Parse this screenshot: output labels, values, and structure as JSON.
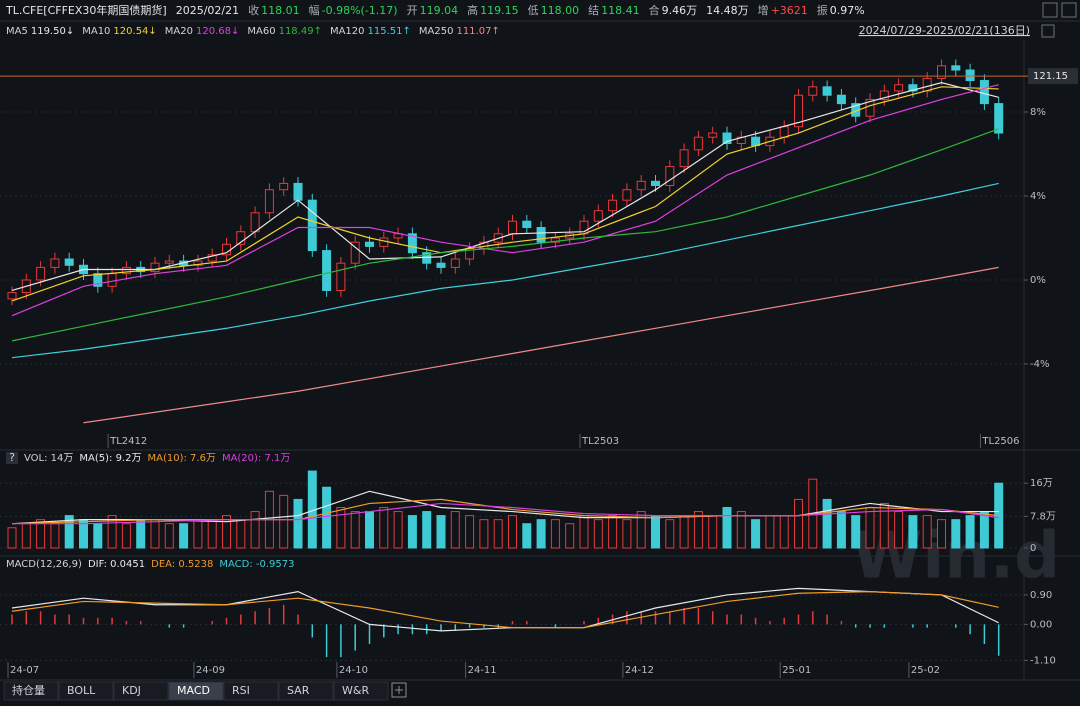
{
  "header": {
    "items": [
      {
        "text": "TL.CFE[CFFEX30年期国债期货]",
        "color": "#e6e6e6"
      },
      {
        "text": "2025/02/21",
        "color": "#e6e6e6"
      },
      {
        "text": "收",
        "color": "#aab0ba"
      },
      {
        "text": "118.01",
        "color": "#2fd35a"
      },
      {
        "text": "幅",
        "color": "#aab0ba"
      },
      {
        "text": "-0.98%(-1.17)",
        "color": "#2fd35a"
      },
      {
        "text": "开",
        "color": "#aab0ba"
      },
      {
        "text": "119.04",
        "color": "#2fd35a"
      },
      {
        "text": "高",
        "color": "#aab0ba"
      },
      {
        "text": "119.15",
        "color": "#2fd35a"
      },
      {
        "text": "低",
        "color": "#aab0ba"
      },
      {
        "text": "118.00",
        "color": "#2fd35a"
      },
      {
        "text": "结",
        "color": "#aab0ba"
      },
      {
        "text": "118.41",
        "color": "#2fd35a"
      },
      {
        "text": "合",
        "color": "#aab0ba"
      },
      {
        "text": "9.46万",
        "color": "#e6e6e6"
      },
      {
        "text": "14.48万",
        "color": "#e6e6e6"
      },
      {
        "text": "增",
        "color": "#aab0ba"
      },
      {
        "text": "+3621",
        "color": "#ff4a4a"
      },
      {
        "text": "振",
        "color": "#aab0ba"
      },
      {
        "text": "0.97%",
        "color": "#e6e6e6"
      }
    ],
    "range": "2024/07/29-2025/02/21(136日)"
  },
  "help_icon": "?",
  "watermark": "Win.d",
  "tabs": {
    "items": [
      "持仓量",
      "BOLL",
      "KDJ",
      "MACD",
      "RSI",
      "SAR",
      "W&R"
    ],
    "active": "MACD"
  },
  "chart_data": [
    {
      "type": "candlestick",
      "open": [
        -0.9,
        -0.6,
        0.0,
        0.6,
        1.0,
        0.7,
        0.3,
        -0.3,
        0.3,
        0.6,
        0.4,
        0.8,
        0.9,
        0.7,
        0.9,
        1.2,
        1.7,
        2.3,
        3.2,
        4.3,
        4.6,
        3.8,
        1.4,
        -0.5,
        0.8,
        1.8,
        1.6,
        2.0,
        2.2,
        1.3,
        0.8,
        0.6,
        1.0,
        1.5,
        1.8,
        2.2,
        2.8,
        2.5,
        1.8,
        2.0,
        2.2,
        2.8,
        3.3,
        3.8,
        4.3,
        4.7,
        4.5,
        5.4,
        6.2,
        6.8,
        7.0,
        6.5,
        6.8,
        6.4,
        6.8,
        7.3,
        8.8,
        9.2,
        8.8,
        8.4,
        7.8,
        8.6,
        9.0,
        9.3,
        9.0,
        9.6,
        10.2,
        10.0,
        9.5,
        8.4
      ],
      "high": [
        -0.3,
        0.3,
        0.9,
        1.3,
        1.3,
        1.0,
        0.6,
        0.6,
        0.9,
        0.9,
        1.1,
        1.2,
        1.2,
        1.2,
        1.5,
        2.0,
        2.6,
        3.5,
        4.6,
        4.9,
        4.9,
        4.1,
        1.7,
        1.1,
        2.1,
        2.1,
        2.3,
        2.5,
        2.5,
        1.6,
        1.1,
        1.3,
        1.8,
        2.1,
        2.5,
        3.1,
        3.1,
        2.8,
        2.3,
        2.5,
        3.1,
        3.6,
        4.1,
        4.6,
        5.0,
        5.0,
        5.7,
        6.5,
        7.1,
        7.3,
        7.3,
        7.1,
        7.1,
        7.1,
        7.6,
        9.1,
        9.5,
        9.5,
        9.1,
        8.7,
        8.9,
        9.3,
        9.6,
        9.6,
        9.9,
        10.5,
        10.5,
        10.3,
        9.8,
        8.7
      ],
      "low": [
        -1.2,
        -0.9,
        -0.3,
        0.3,
        0.4,
        0.0,
        -0.6,
        -0.6,
        0.0,
        0.1,
        0.1,
        0.5,
        0.4,
        0.4,
        0.6,
        0.9,
        1.4,
        2.0,
        2.9,
        4.0,
        3.5,
        1.1,
        -0.8,
        -0.8,
        0.5,
        1.3,
        1.3,
        1.7,
        1.0,
        0.5,
        0.3,
        0.3,
        0.7,
        1.2,
        1.5,
        1.9,
        2.2,
        1.5,
        1.5,
        1.7,
        1.9,
        2.5,
        3.0,
        3.5,
        4.0,
        4.2,
        4.2,
        5.1,
        5.9,
        6.5,
        6.2,
        6.2,
        6.1,
        6.1,
        6.5,
        7.0,
        8.5,
        8.5,
        8.1,
        7.5,
        7.5,
        8.3,
        8.7,
        8.7,
        8.7,
        9.3,
        9.7,
        9.2,
        8.1,
        6.7
      ],
      "close": [
        -0.6,
        0.0,
        0.6,
        1.0,
        0.7,
        0.3,
        -0.3,
        0.3,
        0.6,
        0.4,
        0.8,
        0.9,
        0.7,
        0.9,
        1.2,
        1.7,
        2.3,
        3.2,
        4.3,
        4.6,
        3.8,
        1.4,
        -0.5,
        0.8,
        1.8,
        1.6,
        2.0,
        2.2,
        1.3,
        0.8,
        0.6,
        1.0,
        1.5,
        1.8,
        2.2,
        2.8,
        2.5,
        1.8,
        2.0,
        2.2,
        2.8,
        3.3,
        3.8,
        4.3,
        4.7,
        4.5,
        5.4,
        6.2,
        6.8,
        7.0,
        6.5,
        6.8,
        6.4,
        6.8,
        7.3,
        8.8,
        9.2,
        8.8,
        8.4,
        7.8,
        8.6,
        9.0,
        9.3,
        9.0,
        9.6,
        10.2,
        10.0,
        9.5,
        8.4,
        7.0
      ],
      "up_color": "#e8393a",
      "down_color": "#3fcbd5",
      "ylim": [
        -7.24,
        11.43
      ],
      "yticks": [
        {
          "value": -4,
          "label": "-4%"
        },
        {
          "value": 0,
          "label": "0%"
        },
        {
          "value": 4,
          "label": "4%"
        },
        {
          "value": 8,
          "label": "8%"
        }
      ],
      "price_line": {
        "value": 9.71,
        "label": "121.15",
        "color": "#c8642a"
      },
      "contracts": [
        {
          "index": 7,
          "label": "TL2412"
        },
        {
          "index": 40,
          "label": "TL2503"
        },
        {
          "index": 68,
          "label": "TL2506"
        }
      ],
      "series": [
        {
          "name": "MA5",
          "last": "119.50↓",
          "color": "#e8e8e8",
          "x": [
            0,
            5,
            10,
            15,
            20,
            25,
            30,
            35,
            40,
            45,
            50,
            55,
            60,
            65,
            69
          ],
          "values": [
            -0.5,
            0.5,
            0.5,
            1.3,
            3.8,
            1.0,
            1.1,
            2.2,
            2.3,
            4.3,
            6.6,
            7.5,
            8.5,
            9.4,
            8.7
          ]
        },
        {
          "name": "MA10",
          "last": "120.54↓",
          "color": "#f2d22b",
          "x": [
            0,
            5,
            10,
            15,
            20,
            25,
            30,
            35,
            40,
            45,
            50,
            55,
            60,
            65,
            69
          ],
          "values": [
            -1.0,
            0.2,
            0.5,
            0.9,
            3.0,
            2.0,
            1.3,
            1.8,
            2.2,
            3.5,
            6.0,
            7.0,
            8.3,
            9.2,
            9.1
          ]
        },
        {
          "name": "MA20",
          "last": "120.68↓",
          "color": "#e040e6",
          "x": [
            0,
            5,
            10,
            15,
            20,
            25,
            30,
            35,
            40,
            45,
            50,
            55,
            60,
            65,
            69
          ],
          "values": [
            -1.7,
            -0.3,
            0.3,
            0.7,
            2.5,
            2.5,
            1.8,
            1.3,
            1.8,
            2.8,
            5.0,
            6.3,
            7.6,
            8.6,
            9.3
          ]
        },
        {
          "name": "MA60",
          "last": "118.49↑",
          "color": "#2eb83a",
          "x": [
            0,
            5,
            10,
            15,
            20,
            25,
            30,
            35,
            40,
            45,
            50,
            55,
            60,
            65,
            69
          ],
          "values": [
            -2.9,
            -2.2,
            -1.5,
            -0.8,
            0.0,
            0.8,
            1.3,
            1.6,
            2.0,
            2.3,
            3.0,
            4.0,
            5.0,
            6.2,
            7.2
          ]
        },
        {
          "name": "MA120",
          "last": "115.51↑",
          "color": "#3fd0dc",
          "x": [
            0,
            5,
            10,
            15,
            20,
            25,
            30,
            35,
            40,
            45,
            50,
            55,
            60,
            65,
            69
          ],
          "values": [
            -3.7,
            -3.3,
            -2.8,
            -2.3,
            -1.7,
            -1.0,
            -0.4,
            0.0,
            0.6,
            1.2,
            1.9,
            2.6,
            3.3,
            4.0,
            4.6
          ]
        },
        {
          "name": "MA250",
          "last": "111.07↑",
          "color": "#f08a8a",
          "x": [
            0,
            5,
            10,
            15,
            20,
            25,
            30,
            35,
            40,
            45,
            50,
            55,
            60,
            65,
            69
          ],
          "values": [
            null,
            -6.8,
            -6.3,
            -5.8,
            -5.3,
            -4.7,
            -4.1,
            -3.5,
            -2.9,
            -2.3,
            -1.7,
            -1.1,
            -0.5,
            0.1,
            0.6
          ]
        }
      ]
    },
    {
      "type": "volume",
      "title": "VOL: 14万",
      "values": [
        5,
        6,
        7,
        6,
        8,
        7,
        6,
        8,
        6,
        7,
        7,
        6,
        6,
        7,
        7,
        8,
        7,
        9,
        14,
        13,
        12,
        19,
        15,
        10,
        9,
        9,
        10,
        9,
        8,
        9,
        8,
        9,
        8,
        7,
        7,
        8,
        6,
        7,
        7,
        6,
        8,
        7,
        8,
        7,
        9,
        8,
        7,
        8,
        9,
        8,
        10,
        9,
        7,
        8,
        8,
        12,
        17,
        12,
        9,
        8,
        10,
        11,
        9,
        8,
        8,
        7,
        7,
        8,
        9,
        16
      ],
      "ylim": [
        0,
        20.5
      ],
      "yticks": [
        0,
        {
          "value": 7.8,
          "label": "7.8万"
        },
        {
          "value": 16,
          "label": "16万"
        }
      ],
      "series": [
        {
          "name": "MA(5): 9.2万",
          "color": "#e8e8e8",
          "x": [
            0,
            5,
            10,
            15,
            20,
            25,
            30,
            35,
            40,
            45,
            50,
            55,
            60,
            65,
            69
          ],
          "values": [
            6,
            7,
            7,
            6.5,
            8,
            14,
            10,
            9,
            7.5,
            7.5,
            8,
            8,
            11,
            9,
            9
          ]
        },
        {
          "name": "MA(10): 7.6万",
          "color": "#f09a2a",
          "x": [
            0,
            5,
            10,
            15,
            20,
            25,
            30,
            35,
            40,
            45,
            50,
            55,
            60,
            65,
            69
          ],
          "values": [
            6,
            6.5,
            7,
            7,
            7,
            11,
            12,
            9.5,
            8,
            7.5,
            8,
            8,
            10,
            9.5,
            8
          ]
        },
        {
          "name": "MA(20): 7.1万",
          "color": "#d640e0",
          "x": [
            0,
            5,
            10,
            15,
            20,
            25,
            30,
            35,
            40,
            45,
            50,
            55,
            60,
            65,
            69
          ],
          "values": [
            6,
            6,
            6.5,
            7,
            7,
            9,
            11,
            10,
            8.5,
            8,
            8,
            8,
            9,
            9.5,
            7.5
          ]
        }
      ]
    },
    {
      "type": "macd",
      "title": "MACD(12,26,9)",
      "name": "MACD: -0.9573",
      "up_color": "#e8393a",
      "down_color": "#3fcbd5",
      "values": [
        0.3,
        0.4,
        0.4,
        0.3,
        0.3,
        0.2,
        0.2,
        0.2,
        0.1,
        0.1,
        0.0,
        -0.1,
        -0.1,
        0.0,
        0.1,
        0.2,
        0.3,
        0.4,
        0.5,
        0.6,
        0.3,
        -0.4,
        -1.0,
        -1.0,
        -0.8,
        -0.6,
        -0.4,
        -0.3,
        -0.3,
        -0.3,
        -0.2,
        -0.2,
        -0.1,
        -0.1,
        -0.1,
        0.1,
        0.1,
        0.0,
        -0.1,
        0.0,
        0.1,
        0.2,
        0.3,
        0.4,
        0.4,
        0.4,
        0.4,
        0.5,
        0.5,
        0.4,
        0.3,
        0.3,
        0.2,
        0.1,
        0.2,
        0.3,
        0.4,
        0.3,
        0.1,
        -0.1,
        -0.1,
        -0.1,
        0.0,
        -0.1,
        -0.1,
        0.0,
        -0.1,
        -0.3,
        -0.6,
        -0.96
      ],
      "ylim": [
        -1.15,
        1.6
      ],
      "yticks": [
        {
          "value": 0.9,
          "label": "0.90"
        },
        {
          "value": 0,
          "label": "0.00"
        },
        {
          "value": -1.1,
          "label": "-1.10"
        }
      ],
      "series": [
        {
          "name": "DIF: 0.0451",
          "color": "#e8e8e8",
          "x": [
            0,
            5,
            10,
            15,
            20,
            25,
            30,
            35,
            40,
            45,
            50,
            55,
            60,
            65,
            69
          ],
          "values": [
            0.5,
            0.8,
            0.6,
            0.6,
            1.0,
            0.0,
            -0.2,
            -0.1,
            -0.1,
            0.5,
            0.9,
            1.1,
            1.0,
            0.9,
            0.05
          ]
        },
        {
          "name": "DEA: 0.5238",
          "color": "#f09a2a",
          "x": [
            0,
            5,
            10,
            15,
            20,
            25,
            30,
            35,
            40,
            45,
            50,
            55,
            60,
            65,
            69
          ],
          "values": [
            0.4,
            0.7,
            0.65,
            0.6,
            0.8,
            0.5,
            0.1,
            -0.1,
            -0.1,
            0.3,
            0.7,
            0.95,
            1.0,
            0.9,
            0.52
          ]
        }
      ],
      "date_labels": [
        {
          "index": 0,
          "label": "24-07"
        },
        {
          "index": 13,
          "label": "24-09"
        },
        {
          "index": 23,
          "label": "24-10"
        },
        {
          "index": 32,
          "label": "24-11"
        },
        {
          "index": 43,
          "label": "24-12"
        },
        {
          "index": 54,
          "label": "25-01"
        },
        {
          "index": 63,
          "label": "25-02"
        }
      ]
    }
  ]
}
